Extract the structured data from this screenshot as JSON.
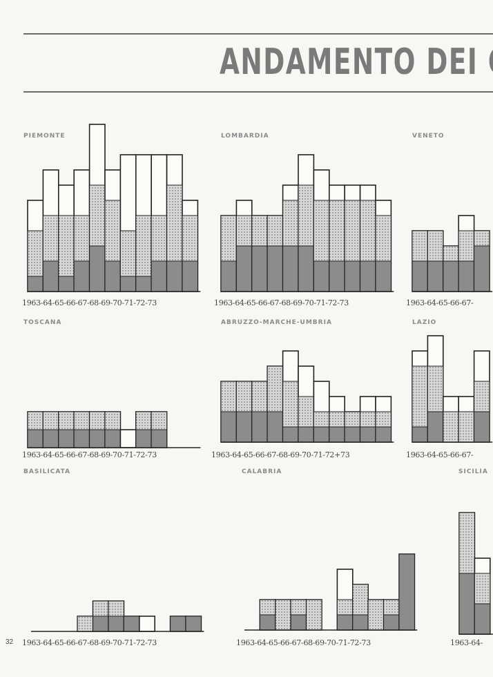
{
  "page": {
    "title": "ANDAMENTO DEI C",
    "page_number": "32"
  },
  "colors": {
    "outline": "#222222",
    "dark_fill": "#8c8c8c",
    "dotted_fill": "#d8d8d8",
    "background": "#f7f7f3"
  },
  "chart_data": [
    {
      "region": "PIEMONTE",
      "type": "bar",
      "axis_label": "1963-64-65-66-67-68-69-70-71-72-73",
      "categories": [
        "1963",
        "64",
        "65",
        "66",
        "67",
        "68",
        "69",
        "70",
        "71",
        "72",
        "73"
      ],
      "series": [
        {
          "values": [
            1,
            2,
            1,
            2,
            3,
            2,
            1,
            1,
            2,
            2,
            2
          ]
        },
        {
          "values": [
            4,
            5,
            5,
            5,
            7,
            6,
            4,
            5,
            5,
            7,
            5
          ]
        },
        {
          "values": [
            6,
            8,
            7,
            8,
            11,
            8,
            9,
            9,
            9,
            9,
            6
          ]
        }
      ]
    },
    {
      "region": "LOMBARDIA",
      "type": "bar",
      "axis_label": "1963-64-65-66-67-68-69-70-71-72-73",
      "categories": [
        "1963",
        "64",
        "65",
        "66",
        "67",
        "68",
        "69",
        "70",
        "71",
        "72",
        "73"
      ],
      "series": [
        {
          "values": [
            2,
            3,
            3,
            3,
            3,
            3,
            2,
            2,
            2,
            2,
            2
          ]
        },
        {
          "values": [
            5,
            5,
            5,
            5,
            6,
            7,
            6,
            6,
            6,
            6,
            5
          ]
        },
        {
          "values": [
            5,
            6,
            5,
            5,
            7,
            9,
            8,
            7,
            7,
            7,
            6
          ]
        }
      ]
    },
    {
      "region": "VENETO",
      "type": "bar",
      "axis_label": "1963-64-65-66-67-",
      "categories": [
        "1963",
        "64",
        "65",
        "66",
        "67"
      ],
      "series": [
        {
          "values": [
            2,
            2,
            2,
            2,
            3
          ]
        },
        {
          "values": [
            4,
            4,
            3,
            4,
            4
          ]
        },
        {
          "values": [
            4,
            4,
            3,
            5,
            4
          ]
        }
      ]
    },
    {
      "region": "TOSCANA",
      "type": "bar",
      "axis_label": "1963-64-65-66-67-68-69-70-71-72-73",
      "categories": [
        "1963",
        "64",
        "65",
        "66",
        "67",
        "68",
        "69",
        "70",
        "71",
        "72",
        "73"
      ],
      "series": [
        {
          "values": [
            1,
            1,
            1,
            1,
            1,
            1,
            0,
            1,
            1,
            0,
            0
          ]
        },
        {
          "values": [
            2,
            2,
            2,
            2,
            2,
            2,
            0,
            2,
            2,
            0,
            0
          ]
        },
        {
          "values": [
            2,
            2,
            2,
            2,
            2,
            2,
            1,
            2,
            2,
            0,
            0
          ]
        }
      ]
    },
    {
      "region": "ABRUZZO-MARCHE-UMBRIA",
      "type": "bar",
      "axis_label": "1963-64-65-66-67-68-69-70-71-72+73",
      "categories": [
        "1963",
        "64",
        "65",
        "66",
        "67",
        "68",
        "69",
        "70",
        "71",
        "72",
        "73"
      ],
      "series": [
        {
          "values": [
            2,
            2,
            2,
            2,
            1,
            1,
            1,
            1,
            1,
            1,
            1
          ]
        },
        {
          "values": [
            4,
            4,
            4,
            5,
            4,
            3,
            2,
            2,
            2,
            2,
            2
          ]
        },
        {
          "values": [
            4,
            4,
            4,
            5,
            6,
            5,
            4,
            3,
            2,
            3,
            3
          ]
        }
      ]
    },
    {
      "region": "LAZIO",
      "type": "bar",
      "axis_label": "1963-64-65-66-67-",
      "categories": [
        "1963",
        "64",
        "65",
        "66",
        "67"
      ],
      "series": [
        {
          "values": [
            1,
            2,
            0,
            0,
            2
          ]
        },
        {
          "values": [
            5,
            5,
            2,
            2,
            4
          ]
        },
        {
          "values": [
            6,
            7,
            3,
            3,
            6
          ]
        }
      ]
    },
    {
      "region": "BASILICATA",
      "type": "bar",
      "axis_label": "1963-64-65-66-67-68-69-70-71-72-73",
      "categories": [
        "1963",
        "64",
        "65",
        "66",
        "67",
        "68",
        "69",
        "70",
        "71",
        "72",
        "73"
      ],
      "series": [
        {
          "values": [
            0,
            0,
            0,
            0,
            1,
            1,
            1,
            0,
            0,
            1,
            1
          ]
        },
        {
          "values": [
            0,
            0,
            0,
            1,
            2,
            2,
            1,
            0,
            0,
            1,
            1
          ]
        },
        {
          "values": [
            0,
            0,
            0,
            1,
            2,
            2,
            1,
            1,
            0,
            1,
            1
          ]
        }
      ]
    },
    {
      "region": "CALABRIA",
      "type": "bar",
      "axis_label": "1963-64-65-66-67-68-69-70-71-72-73",
      "categories": [
        "1963",
        "64",
        "65",
        "66",
        "67",
        "68",
        "69",
        "70",
        "71",
        "72",
        "73"
      ],
      "series": [
        {
          "values": [
            0,
            1,
            0,
            1,
            0,
            0,
            1,
            1,
            0,
            1,
            5
          ]
        },
        {
          "values": [
            0,
            2,
            2,
            2,
            2,
            0,
            2,
            3,
            2,
            2,
            5
          ]
        },
        {
          "values": [
            0,
            2,
            2,
            2,
            2,
            0,
            4,
            3,
            2,
            2,
            5
          ]
        }
      ]
    },
    {
      "region": "SICILIA",
      "type": "bar",
      "axis_label": "1963-64-",
      "categories": [
        "1963",
        "64"
      ],
      "series": [
        {
          "values": [
            4,
            2
          ]
        },
        {
          "values": [
            8,
            4
          ]
        },
        {
          "values": [
            8,
            5
          ]
        }
      ]
    }
  ]
}
